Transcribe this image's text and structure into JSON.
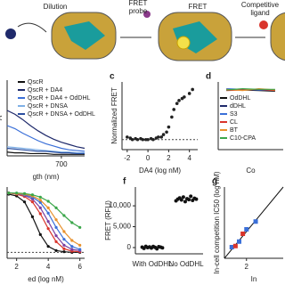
{
  "schematic": {
    "labels": [
      "Dilution",
      "FRET",
      "probe",
      "FRET",
      "Competitive",
      "ligand"
    ]
  },
  "chart_data": [
    {
      "type": "line",
      "y_label": "A",
      "x_label": "gth (nm)",
      "xlim": [
        560,
        760
      ],
      "ylim": [
        0,
        100
      ],
      "xticks": [
        700
      ],
      "x": [
        560,
        580,
        600,
        620,
        640,
        660,
        680,
        700,
        720,
        740,
        760
      ],
      "legend": "upper right",
      "series": [
        {
          "name": "QscR",
          "color": "#111111",
          "values": [
            5,
            4,
            4,
            3,
            3,
            3,
            2,
            2,
            2,
            2,
            2
          ]
        },
        {
          "name": "QscR + DA4",
          "color": "#1f2a6b",
          "values": [
            60,
            55,
            48,
            40,
            33,
            27,
            22,
            18,
            15,
            12,
            10
          ]
        },
        {
          "name": "QscR + DA4 + OdDHL",
          "color": "#3a6fd8",
          "values": [
            40,
            36,
            30,
            25,
            20,
            16,
            13,
            10,
            8,
            7,
            6
          ]
        },
        {
          "name": "QscR + DNSA",
          "color": "#7fb0e6",
          "values": [
            12,
            11,
            10,
            9,
            8,
            7,
            6,
            5,
            5,
            4,
            4
          ]
        },
        {
          "name": "QscR + DNSA + OdDHL",
          "color": "#2b4fa0",
          "values": [
            10,
            9,
            8,
            7,
            6,
            6,
            5,
            4,
            4,
            3,
            3
          ]
        }
      ]
    },
    {
      "type": "scatter",
      "panel_label": "c",
      "y_label": "Normalized FRET",
      "x_label": "DA4 (log nM)",
      "xlim": [
        -2.5,
        4.8
      ],
      "ylim": [
        -20,
        115
      ],
      "xticks": [
        -2,
        0,
        2,
        4
      ],
      "reference_line": 0,
      "color": "#222222",
      "x": [
        -2,
        -1.7,
        -1.5,
        -1.2,
        -1,
        -0.7,
        -0.5,
        -0.2,
        0,
        0.3,
        0.5,
        0.8,
        1,
        1.3,
        1.5,
        1.8,
        2,
        2.3,
        2.5,
        2.8,
        3,
        3.3,
        3.5,
        4,
        4.3
      ],
      "values": [
        5,
        3,
        0,
        2,
        0,
        2,
        0,
        0,
        0,
        2,
        0,
        3,
        5,
        5,
        10,
        15,
        25,
        45,
        60,
        72,
        78,
        82,
        85,
        92,
        100
      ]
    },
    {
      "type": "line",
      "panel_label": "d",
      "x_label": "Co",
      "xlim": [
        -3,
        5
      ],
      "ylim": [
        0,
        110
      ],
      "x": [
        -2,
        0,
        2,
        4
      ],
      "series": [
        {
          "name": "OdDHL",
          "color": "#111111",
          "values": [
            98,
            97,
            96,
            95
          ]
        },
        {
          "name": "dDHL",
          "color": "#1f2a6b",
          "values": [
            97,
            98,
            97,
            96
          ]
        },
        {
          "name": "S3",
          "color": "#3a6fd8",
          "values": [
            99,
            98,
            97,
            97
          ]
        },
        {
          "name": "CL",
          "color": "#d9342b",
          "values": [
            96,
            97,
            98,
            96
          ]
        },
        {
          "name": "BT",
          "color": "#e8912d",
          "values": [
            98,
            96,
            99,
            97
          ]
        },
        {
          "name": "C10-CPA",
          "color": "#3aa64a",
          "values": [
            97,
            99,
            98,
            98
          ]
        }
      ]
    },
    {
      "type": "line",
      "x_label": "ed (log nM)",
      "xlim": [
        1.4,
        6.3
      ],
      "ylim": [
        -10,
        110
      ],
      "xticks": [
        2,
        4,
        6
      ],
      "reference_line": 0,
      "x": [
        1.5,
        2,
        2.5,
        3,
        3.5,
        4,
        4.5,
        5,
        5.5,
        6
      ],
      "series": [
        {
          "color": "#111111",
          "values": [
            98,
            95,
            85,
            60,
            30,
            10,
            3,
            1,
            0,
            0
          ]
        },
        {
          "color": "#d9342b",
          "values": [
            100,
            98,
            94,
            85,
            65,
            40,
            18,
            6,
            2,
            1
          ]
        },
        {
          "color": "#7b3fa0",
          "values": [
            100,
            99,
            96,
            90,
            75,
            52,
            28,
            12,
            5,
            3
          ]
        },
        {
          "color": "#3a6fd8",
          "values": [
            100,
            99,
            97,
            93,
            84,
            66,
            42,
            22,
            10,
            5
          ]
        },
        {
          "color": "#e8912d",
          "values": [
            100,
            99,
            98,
            95,
            88,
            75,
            55,
            35,
            20,
            12
          ]
        },
        {
          "color": "#3aa64a",
          "values": [
            100,
            100,
            99,
            97,
            93,
            86,
            75,
            62,
            50,
            42
          ]
        }
      ]
    },
    {
      "type": "strip",
      "panel_label": "f",
      "y_label": "FRET (RFU)",
      "ylim": [
        -1500,
        14500
      ],
      "yticks": [
        0,
        {
          "value": 5000,
          "label": "5,000"
        },
        {
          "value": 10000,
          "label": "10,000"
        }
      ],
      "categories": [
        "With OdDHL",
        "No OdDHL"
      ],
      "color": "#111111",
      "values": [
        [
          100,
          -200,
          300,
          0,
          150,
          -100,
          250,
          50,
          -300,
          200,
          100,
          -50
        ],
        [
          11200,
          11600,
          11900,
          11400,
          12100,
          11000,
          11700,
          11500,
          12300,
          11300,
          11800,
          11600
        ]
      ]
    },
    {
      "type": "scatter",
      "panel_label": "g",
      "y_label": "In-cell competition IC50 (log nM)",
      "x_label": "In",
      "xlim": [
        0.8,
        4
      ],
      "ylim": [
        0.8,
        4
      ],
      "xticks": [
        2
      ],
      "identity_line": true,
      "series": [
        {
          "color": "#3a6fd8",
          "x": [
            1.2,
            1.6,
            2.0,
            2.5
          ],
          "values": [
            1.3,
            1.55,
            2.1,
            2.45
          ]
        },
        {
          "color": "#d9342b",
          "x": [
            1.4,
            1.8
          ],
          "values": [
            1.35,
            1.9
          ]
        }
      ]
    }
  ]
}
